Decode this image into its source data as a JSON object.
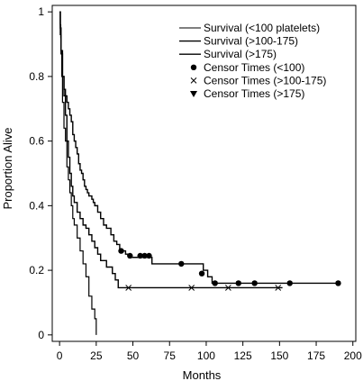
{
  "chart_data": {
    "type": "line",
    "step": true,
    "xlabel": "Months",
    "ylabel": "Proportion Alive",
    "xlim": [
      -5,
      202
    ],
    "ylim": [
      -0.02,
      1.02
    ],
    "grid": false,
    "legend_position": "top-right",
    "x_ticks": [
      0,
      25,
      50,
      75,
      100,
      125,
      150,
      175,
      200
    ],
    "y_ticks": [
      0,
      0.2,
      0.4,
      0.6,
      0.8,
      1
    ],
    "x_tick_labels": [
      "0",
      "25",
      "50",
      "75",
      "100",
      "125",
      "150",
      "175",
      "200"
    ],
    "y_tick_labels": [
      "0",
      "0.2",
      "0.4",
      "0.6",
      "0.8",
      "1"
    ],
    "legend": [
      {
        "label": "Survival (<100 platelets)",
        "symbol": "line-thin"
      },
      {
        "label": "Survival (>100-175)",
        "symbol": "line"
      },
      {
        "label": "Survival (>175)",
        "symbol": "line"
      },
      {
        "label": "Censor Times (<100)",
        "symbol": "circle"
      },
      {
        "label": "Censor Times (>100-175)",
        "symbol": "x"
      },
      {
        "label": "Censor Times (>175)",
        "symbol": "triangle-down"
      }
    ],
    "series": [
      {
        "name": "Survival (<100 platelets)",
        "stroke": "#000000",
        "stroke_width": 1.2,
        "points": [
          [
            0,
            1
          ],
          [
            0.5,
            0.96
          ],
          [
            0.8,
            0.92
          ],
          [
            1,
            0.88
          ],
          [
            1.5,
            0.8
          ],
          [
            2,
            0.72
          ],
          [
            3,
            0.64
          ],
          [
            4,
            0.6
          ],
          [
            5,
            0.52
          ],
          [
            6,
            0.48
          ],
          [
            7,
            0.44
          ],
          [
            8,
            0.4
          ],
          [
            9,
            0.36
          ],
          [
            10,
            0.34
          ],
          [
            12,
            0.3
          ],
          [
            14,
            0.26
          ],
          [
            16,
            0.22
          ],
          [
            18,
            0.18
          ],
          [
            20,
            0.12
          ],
          [
            22,
            0.08
          ],
          [
            24,
            0.05
          ],
          [
            25,
            0.0
          ]
        ]
      },
      {
        "name": "Survival (>100-175)",
        "stroke": "#000000",
        "stroke_width": 1.4,
        "points": [
          [
            0,
            1
          ],
          [
            0.5,
            0.93
          ],
          [
            1,
            0.87
          ],
          [
            2,
            0.8
          ],
          [
            3,
            0.74
          ],
          [
            4,
            0.68
          ],
          [
            5,
            0.6
          ],
          [
            6,
            0.55
          ],
          [
            7,
            0.5
          ],
          [
            8,
            0.46
          ],
          [
            9,
            0.43
          ],
          [
            10,
            0.41
          ],
          [
            12,
            0.38
          ],
          [
            14,
            0.36
          ],
          [
            16,
            0.34
          ],
          [
            18,
            0.33
          ],
          [
            20,
            0.31
          ],
          [
            22,
            0.29
          ],
          [
            24,
            0.27
          ],
          [
            26,
            0.25
          ],
          [
            28,
            0.23
          ],
          [
            32,
            0.21
          ],
          [
            36,
            0.19
          ],
          [
            38,
            0.17
          ],
          [
            40,
            0.146
          ],
          [
            152,
            0.146
          ]
        ],
        "censors": [
          47,
          90,
          115,
          149
        ]
      },
      {
        "name": "Survival (>175)",
        "stroke": "#000000",
        "stroke_width": 1.4,
        "points": [
          [
            0,
            1
          ],
          [
            0.5,
            0.95
          ],
          [
            1,
            0.88
          ],
          [
            2,
            0.8
          ],
          [
            3,
            0.76
          ],
          [
            4,
            0.74
          ],
          [
            5,
            0.72
          ],
          [
            6,
            0.7
          ],
          [
            7,
            0.68
          ],
          [
            8,
            0.66
          ],
          [
            9,
            0.62
          ],
          [
            10,
            0.6
          ],
          [
            11,
            0.58
          ],
          [
            12,
            0.56
          ],
          [
            13,
            0.53
          ],
          [
            14,
            0.51
          ],
          [
            15,
            0.5
          ],
          [
            16,
            0.48
          ],
          [
            17,
            0.46
          ],
          [
            18,
            0.45
          ],
          [
            19,
            0.44
          ],
          [
            20,
            0.43
          ],
          [
            22,
            0.42
          ],
          [
            23,
            0.41
          ],
          [
            24,
            0.4
          ],
          [
            26,
            0.38
          ],
          [
            28,
            0.36
          ],
          [
            30,
            0.34
          ],
          [
            32,
            0.33
          ],
          [
            35,
            0.31
          ],
          [
            37,
            0.29
          ],
          [
            39,
            0.28
          ],
          [
            41,
            0.26
          ],
          [
            45,
            0.25
          ],
          [
            47,
            0.24
          ],
          [
            62,
            0.24
          ],
          [
            63,
            0.22
          ],
          [
            97,
            0.22
          ],
          [
            98,
            0.2
          ],
          [
            100,
            0.2
          ],
          [
            101,
            0.18
          ],
          [
            104,
            0.16
          ],
          [
            190,
            0.16
          ]
        ],
        "censors": [
          [
            42,
            0.26
          ],
          [
            48,
            0.245
          ],
          [
            55,
            0.245
          ],
          [
            58,
            0.245
          ],
          [
            61,
            0.245
          ],
          [
            83,
            0.22
          ],
          [
            97,
            0.19
          ],
          [
            106,
            0.16
          ],
          [
            122,
            0.16
          ],
          [
            133,
            0.16
          ],
          [
            157,
            0.16
          ],
          [
            190,
            0.16
          ]
        ]
      }
    ]
  }
}
